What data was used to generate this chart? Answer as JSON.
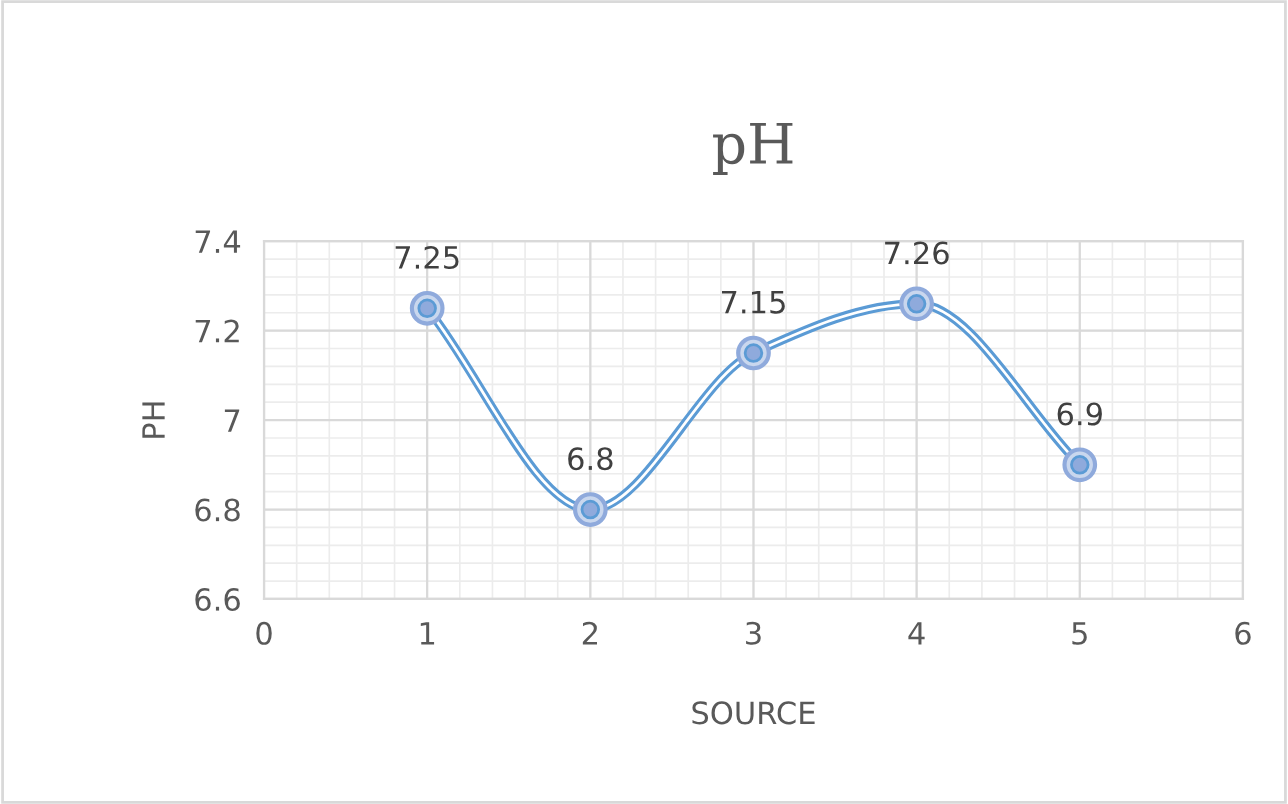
{
  "chart_data": {
    "type": "line",
    "title": "pH",
    "xlabel": "SOURCE",
    "ylabel": "PH",
    "x": [
      1,
      2,
      3,
      4,
      5
    ],
    "series": [
      {
        "color": "#5b9bd5",
        "values": [
          7.25,
          6.8,
          7.15,
          7.26,
          6.9
        ]
      }
    ],
    "xlim": [
      0,
      6
    ],
    "xticks": [
      0,
      1,
      2,
      3,
      4,
      5,
      6
    ],
    "ylim": [
      6.6,
      7.4
    ],
    "yticks": [
      6.6,
      6.8,
      {
        "value": 7.0,
        "label": "7"
      },
      7.2,
      7.4
    ],
    "grid": true,
    "marker": "circle",
    "line_style": "solid",
    "data_labels": true
  }
}
